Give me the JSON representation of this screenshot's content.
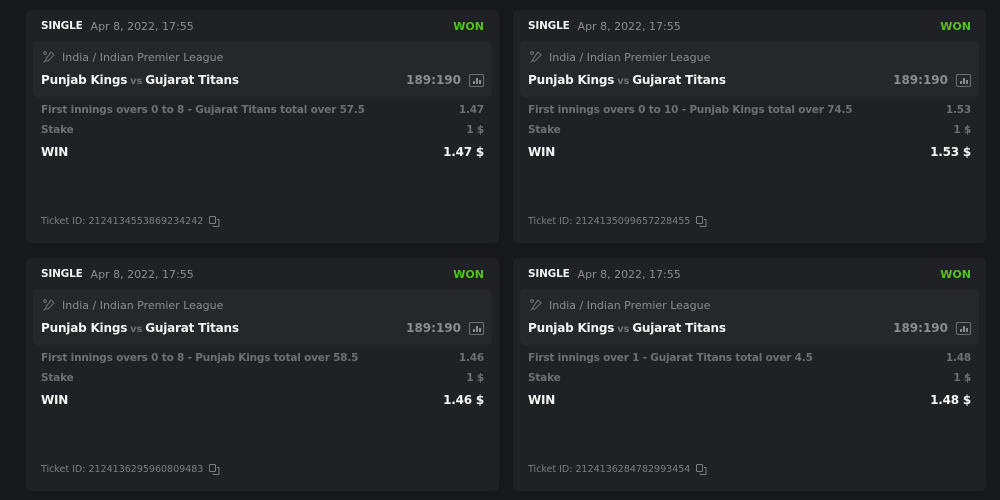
{
  "colors": {
    "background": "#17181b",
    "card": "#202124",
    "event_box": "#26272b",
    "won": "#52c41a"
  },
  "labels": {
    "stake": "Stake",
    "win": "WIN",
    "vs": "vs",
    "ticket_prefix": "Ticket ID:"
  },
  "icons": {
    "league": "cricket-bat-icon",
    "stats": "stats-bar-chart-icon",
    "copy": "copy-icon"
  },
  "bets": [
    {
      "type": "SINGLE",
      "date": "Apr 8, 2022, 17:55",
      "status": "WON",
      "league": "India / Indian Premier League",
      "home": "Punjab Kings",
      "away": "Gujarat Titans",
      "score": "189:190",
      "selection": "First innings overs 0 to 8 - Gujarat Titans total over 57.5",
      "odds": "1.47",
      "stake": "1 $",
      "win": "1.47 $",
      "ticket_id": "2124134553869234242"
    },
    {
      "type": "SINGLE",
      "date": "Apr 8, 2022, 17:55",
      "status": "WON",
      "league": "India / Indian Premier League",
      "home": "Punjab Kings",
      "away": "Gujarat Titans",
      "score": "189:190",
      "selection": "First innings overs 0 to 10 - Punjab Kings total over 74.5",
      "odds": "1.53",
      "stake": "1 $",
      "win": "1.53 $",
      "ticket_id": "2124135099657228455"
    },
    {
      "type": "SINGLE",
      "date": "Apr 8, 2022, 17:55",
      "status": "WON",
      "league": "India / Indian Premier League",
      "home": "Punjab Kings",
      "away": "Gujarat Titans",
      "score": "189:190",
      "selection": "First innings overs 0 to 8 - Punjab Kings total over 58.5",
      "odds": "1.46",
      "stake": "1 $",
      "win": "1.46 $",
      "ticket_id": "2124136295960809483"
    },
    {
      "type": "SINGLE",
      "date": "Apr 8, 2022, 17:55",
      "status": "WON",
      "league": "India / Indian Premier League",
      "home": "Punjab Kings",
      "away": "Gujarat Titans",
      "score": "189:190",
      "selection": "First innings over 1 - Gujarat Titans total over 4.5",
      "odds": "1.48",
      "stake": "1 $",
      "win": "1.48 $",
      "ticket_id": "2124136284782993454"
    }
  ]
}
